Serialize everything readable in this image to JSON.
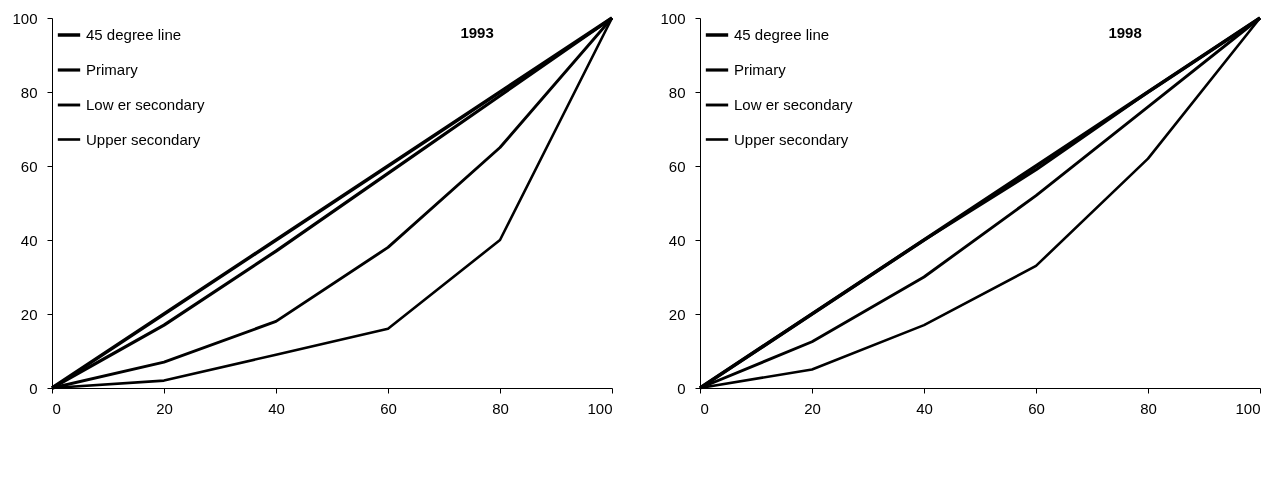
{
  "chart_data": [
    {
      "type": "line",
      "title": "1993",
      "legend": "top left",
      "x": [
        0,
        20,
        40,
        60,
        80,
        100
      ],
      "xlim": [
        0,
        100
      ],
      "ylim": [
        0,
        100
      ],
      "xticks": [
        0,
        20,
        40,
        60,
        80,
        100
      ],
      "yticks": [
        0,
        20,
        40,
        60,
        80,
        100
      ],
      "series": [
        {
          "name": "45 degree line",
          "color": "#000000",
          "values": [
            0,
            20,
            40,
            60,
            80,
            100
          ]
        },
        {
          "name": "Primary",
          "color": "#000000",
          "values": [
            0,
            17,
            37,
            58,
            79,
            100
          ]
        },
        {
          "name": "Low er secondary",
          "color": "#000000",
          "values": [
            0,
            7,
            18,
            38,
            65,
            100
          ]
        },
        {
          "name": "Upper secondary",
          "color": "#000000",
          "values": [
            0,
            2,
            9,
            16,
            40,
            100
          ]
        }
      ]
    },
    {
      "type": "line",
      "title": "1998",
      "legend": "top left",
      "x": [
        0,
        20,
        40,
        60,
        80,
        100
      ],
      "xlim": [
        0,
        100
      ],
      "ylim": [
        0,
        100
      ],
      "xticks": [
        0,
        20,
        40,
        60,
        80,
        100
      ],
      "yticks": [
        0,
        20,
        40,
        60,
        80,
        100
      ],
      "series": [
        {
          "name": "45 degree line",
          "color": "#000000",
          "values": [
            0,
            20,
            40,
            60,
            80,
            100
          ]
        },
        {
          "name": "Primary",
          "color": "#000000",
          "values": [
            0,
            20,
            40,
            59,
            80,
            100
          ]
        },
        {
          "name": "Low er secondary",
          "color": "#000000",
          "values": [
            0,
            12.5,
            30,
            52,
            76,
            100
          ]
        },
        {
          "name": "Upper secondary",
          "color": "#000000",
          "values": [
            0,
            5,
            17,
            33,
            62,
            100
          ]
        }
      ]
    }
  ]
}
